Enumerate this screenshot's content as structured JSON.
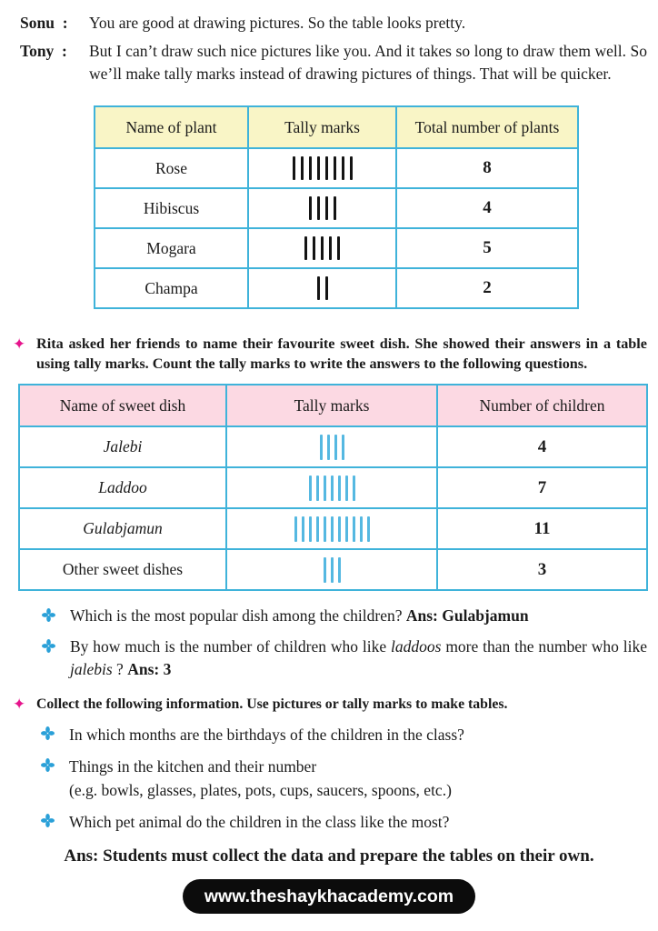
{
  "colors": {
    "accent_pink": "#e6148c",
    "accent_blue": "#2aa0d8",
    "table_border": "#3fb3da",
    "tally_blue": "#55b8e1",
    "header_yellow": "#f9f5c6",
    "header_pink": "#fcd9e3"
  },
  "icons": {
    "section_star_glyph": "✦",
    "item_bullet_name": "four-petal-flower"
  },
  "dialogue": [
    {
      "speaker": "Sonu  :",
      "text": "You are good at drawing pictures. So the table looks pretty."
    },
    {
      "speaker": "Tony  :",
      "text": "But I can’t draw such nice pictures like you. And it takes so long to draw them well. So we’ll make tally marks instead of drawing pictures of things. That will be quicker."
    }
  ],
  "plant_table": {
    "headers": [
      "Name of plant",
      "Tally marks",
      "Total number of plants"
    ],
    "rows": [
      {
        "name": "Rose",
        "tally": 8,
        "total": "8"
      },
      {
        "name": "Hibiscus",
        "tally": 4,
        "total": "4"
      },
      {
        "name": "Mogara",
        "tally": 5,
        "total": "5"
      },
      {
        "name": "Champa",
        "tally": 2,
        "total": "2"
      }
    ]
  },
  "rita_prompt": "Rita asked her friends to name their favourite sweet dish. She showed their answers in a table using tally marks. Count the tally marks to write the answers to the following questions.",
  "sweet_table": {
    "headers": [
      "Name of sweet dish",
      "Tally marks",
      "Number of children"
    ],
    "rows": [
      {
        "name": "Jalebi",
        "tally": 4,
        "total": "4"
      },
      {
        "name": "Laddoo",
        "tally": 7,
        "total": "7"
      },
      {
        "name": "Gulabjamun",
        "tally": 11,
        "total": "11"
      },
      {
        "name": "Other sweet dishes",
        "tally": 3,
        "total": "3"
      }
    ]
  },
  "questions": [
    {
      "text": "Which is the most popular dish among the children? ",
      "answer": "Ans: Gulabjamun"
    },
    {
      "pre": "By how much is the number of children who like ",
      "italic1": "laddoos",
      "mid": " more than the number who like ",
      "italic2": "jalebis",
      "post": " ? ",
      "answer": "Ans: 3"
    }
  ],
  "collect": {
    "heading": "Collect the following information. Use pictures or tally marks to make tables.",
    "items": [
      {
        "text": "In which months are the birthdays of the children in the class?",
        "sub": ""
      },
      {
        "text": "Things in the kitchen and their number",
        "sub": "(e.g.  bowls, glasses, plates, pots, cups, saucers, spoons, etc.)"
      },
      {
        "text": "Which pet animal do the children in the class like the most?",
        "sub": ""
      }
    ]
  },
  "footer": {
    "answer_note": "Ans: Students must collect the data and prepare the tables on their own.",
    "website": "www.theshaykhacademy.com"
  }
}
